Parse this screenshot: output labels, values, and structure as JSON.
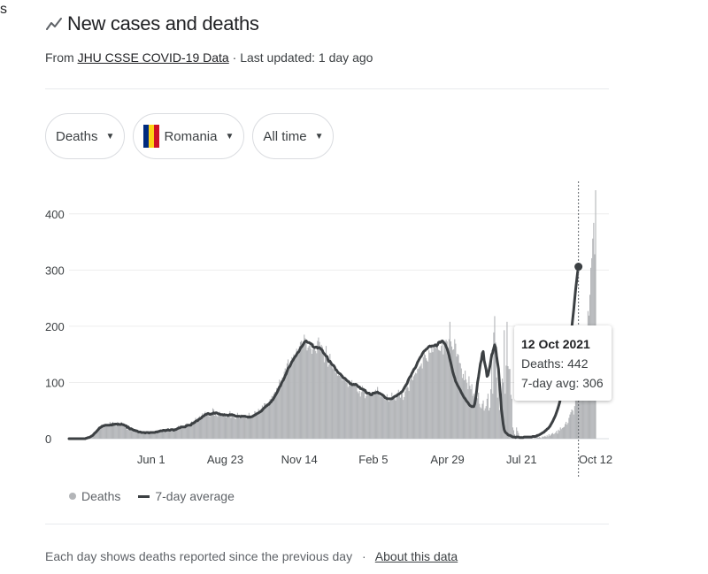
{
  "edge_text": "s",
  "header": {
    "title": "New cases and deaths",
    "source_prefix": "From",
    "source_link": "JHU CSSE COVID-19 Data",
    "source_separator": "·",
    "last_updated": "Last updated: 1 day ago",
    "icon": "trending-line-icon"
  },
  "filters": [
    {
      "label": "Deaths",
      "icon": "caret-down-icon"
    },
    {
      "label": "Romania",
      "icon": "romania-flag-icon",
      "flag_colors": [
        "#002b7f",
        "#fcd116",
        "#ce1126"
      ]
    },
    {
      "label": "All time",
      "icon": "caret-down-icon"
    }
  ],
  "tooltip": {
    "date": "12 Oct 2021",
    "deaths": "Deaths: 442",
    "avg": "7-day avg: 306"
  },
  "legend": {
    "bars_label": "Deaths",
    "line_label": "7-day average"
  },
  "footer": {
    "note": "Each day shows deaths reported since the previous day",
    "separator": "·",
    "link": "About this data"
  },
  "colors": {
    "bar": "#b3b5b8",
    "line": "#3c4043",
    "grid": "#eeeeee",
    "axis_text": "#3c4043"
  },
  "chart_data": {
    "type": "bar",
    "x_start": "2020-03-01",
    "x_end": "2021-10-12",
    "ylim": [
      0,
      450
    ],
    "yticks": [
      0,
      100,
      200,
      300,
      400
    ],
    "xtick_labels": [
      "Jun 1",
      "Aug 23",
      "Nov 14",
      "Feb 5",
      "Apr 29",
      "Jul 21",
      "Oct 12"
    ],
    "xtick_dates": [
      "2020-06-01",
      "2020-08-23",
      "2020-11-14",
      "2021-02-05",
      "2021-04-29",
      "2021-07-21",
      "2021-10-12"
    ],
    "series": [
      {
        "name": "Deaths",
        "kind": "bar",
        "values": [
          0,
          0,
          0,
          0,
          0,
          0,
          0,
          0,
          0,
          0,
          0,
          0,
          0,
          0,
          0,
          1,
          1,
          1,
          1,
          2,
          3,
          3,
          4,
          6,
          7,
          8,
          10,
          13,
          14,
          16,
          18,
          21,
          21,
          23,
          25,
          24,
          23,
          22,
          23,
          24,
          25,
          22,
          25,
          30,
          22,
          23,
          30,
          26,
          27,
          25,
          22,
          30,
          27,
          22,
          23,
          30,
          25,
          23,
          21,
          20,
          21,
          16,
          20,
          18,
          14,
          17,
          15,
          14,
          14,
          13,
          13,
          12,
          11,
          11,
          11,
          12,
          11,
          11,
          11,
          9,
          8,
          13,
          11,
          10,
          10,
          9,
          12,
          12,
          10,
          11,
          12,
          13,
          15,
          13,
          13,
          14,
          16,
          13,
          13,
          17,
          17,
          13,
          18,
          14,
          16,
          13,
          17,
          16,
          15,
          18,
          13,
          18,
          16,
          19,
          19,
          23,
          21,
          24,
          21,
          21,
          21,
          20,
          22,
          27,
          27,
          21,
          24,
          25,
          25,
          31,
          28,
          32,
          31,
          37,
          35,
          31,
          38,
          40,
          34,
          40,
          45,
          42,
          45,
          48,
          45,
          44,
          45,
          40,
          39,
          45,
          44,
          54,
          52,
          41,
          48,
          41,
          39,
          43,
          48,
          43,
          41,
          44,
          41,
          44,
          42,
          38,
          41,
          44,
          43,
          49,
          37,
          43,
          41,
          44,
          36,
          35,
          39,
          46,
          42,
          36,
          38,
          43,
          38,
          41,
          38,
          38,
          35,
          38,
          36,
          46,
          36,
          41,
          41,
          42,
          43,
          49,
          48,
          43,
          42,
          53,
          50,
          52,
          54,
          59,
          53,
          63,
          63,
          62,
          57,
          62,
          61,
          70,
          71,
          76,
          75,
          80,
          83,
          83,
          90,
          90,
          91,
          105,
          96,
          102,
          109,
          108,
          119,
          125,
          115,
          134,
          141,
          131,
          128,
          138,
          145,
          139,
          150,
          142,
          147,
          160,
          152,
          159,
          165,
          172,
          174,
          165,
          173,
          185,
          179,
          175,
          157,
          162,
          165,
          172,
          160,
          151,
          159,
          169,
          160,
          156,
          152,
          174,
          180,
          172,
          159,
          167,
          164,
          150,
          136,
          147,
          165,
          146,
          128,
          132,
          151,
          134,
          136,
          125,
          123,
          128,
          117,
          120,
          112,
          113,
          112,
          117,
          111,
          104,
          105,
          110,
          108,
          100,
          105,
          92,
          95,
          101,
          94,
          104,
          99,
          98,
          96,
          98,
          96,
          84,
          81,
          85,
          75,
          83,
          94,
          85,
          88,
          72,
          76,
          85,
          80,
          83,
          83,
          82,
          81,
          78,
          82,
          85,
          87,
          85,
          92,
          80,
          83,
          75,
          79,
          81,
          77,
          73,
          69,
          72,
          79,
          68,
          66,
          73,
          69,
          82,
          73,
          74,
          72,
          68,
          80,
          82,
          87,
          78,
          73,
          83,
          86,
          69,
          74,
          84,
          90,
          95,
          91,
          85,
          104,
          106,
          112,
          104,
          111,
          114,
          117,
          116,
          124,
          125,
          128,
          130,
          134,
          125,
          145,
          156,
          149,
          143,
          139,
          137,
          157,
          153,
          153,
          167,
          154,
          165,
          170,
          161,
          169,
          168,
          158,
          157,
          156,
          165,
          174,
          150,
          175,
          173,
          176,
          173,
          155,
          177,
          208,
          173,
          164,
          158,
          159,
          177,
          169,
          146,
          151,
          149,
          135,
          134,
          125,
          108,
          115,
          104,
          121,
          105,
          99,
          88,
          111,
          94,
          88,
          97,
          76,
          80,
          73,
          79,
          84,
          72,
          82,
          62,
          56,
          54,
          62,
          68,
          50,
          54,
          58,
          71,
          80,
          50,
          55,
          88,
          158,
          80,
          189,
          218,
          171,
          109,
          73,
          98,
          51,
          85,
          80,
          107,
          100,
          193,
          80,
          130,
          208,
          129,
          124,
          124,
          78,
          71,
          20,
          15,
          8,
          5,
          20,
          14,
          10,
          5,
          4,
          5,
          4,
          3,
          3,
          3,
          3,
          2,
          5,
          2,
          1,
          3,
          3,
          0,
          1,
          4,
          1,
          4,
          6,
          2,
          3,
          2,
          1,
          4,
          3,
          4,
          5,
          3,
          6,
          4,
          8,
          5,
          7,
          9,
          10,
          8,
          9,
          11,
          14,
          9,
          16,
          14,
          20,
          17,
          19,
          20,
          21,
          26,
          30,
          25,
          28,
          37,
          43,
          47,
          52,
          50,
          43,
          58,
          70,
          70,
          79,
          98,
          85,
          96,
          103,
          118,
          127,
          135,
          139,
          177,
          187,
          227,
          219,
          256,
          304,
          321,
          356,
          384,
          328,
          442
        ]
      },
      {
        "name": "7-day average",
        "kind": "line",
        "values": [
          0,
          0,
          0,
          0,
          0,
          0,
          0,
          0,
          0,
          0,
          0,
          0,
          0,
          0,
          0,
          0,
          0,
          0,
          1,
          1,
          2,
          2,
          3,
          4,
          5,
          6,
          8,
          10,
          11,
          13,
          15,
          17,
          19,
          20,
          21,
          22,
          23,
          23,
          24,
          24,
          24,
          24,
          24,
          24,
          25,
          24,
          26,
          25,
          26,
          26,
          26,
          25,
          26,
          25,
          25,
          26,
          25,
          25,
          24,
          23,
          23,
          20,
          21,
          19,
          17,
          18,
          17,
          16,
          15,
          15,
          14,
          14,
          13,
          12,
          12,
          12,
          11,
          11,
          11,
          11,
          10,
          11,
          11,
          11,
          10,
          11,
          11,
          11,
          11,
          11,
          11,
          12,
          12,
          12,
          13,
          13,
          14,
          14,
          14,
          15,
          15,
          14,
          15,
          15,
          16,
          15,
          15,
          16,
          16,
          16,
          15,
          16,
          16,
          17,
          18,
          19,
          19,
          20,
          21,
          21,
          21,
          21,
          21,
          23,
          23,
          24,
          24,
          24,
          24,
          27,
          27,
          28,
          29,
          31,
          32,
          32,
          34,
          35,
          36,
          37,
          39,
          40,
          41,
          43,
          43,
          44,
          45,
          44,
          43,
          44,
          44,
          45,
          46,
          45,
          46,
          46,
          45,
          44,
          44,
          43,
          43,
          43,
          42,
          43,
          42,
          42,
          42,
          41,
          42,
          43,
          42,
          43,
          42,
          42,
          41,
          40,
          40,
          40,
          40,
          40,
          39,
          40,
          40,
          40,
          40,
          40,
          39,
          39,
          38,
          39,
          38,
          39,
          39,
          40,
          41,
          42,
          43,
          44,
          45,
          46,
          47,
          48,
          49,
          51,
          53,
          55,
          56,
          58,
          59,
          61,
          61,
          64,
          65,
          68,
          69,
          72,
          75,
          78,
          81,
          84,
          88,
          92,
          94,
          98,
          102,
          104,
          108,
          112,
          115,
          120,
          125,
          127,
          129,
          133,
          137,
          139,
          142,
          145,
          147,
          150,
          153,
          154,
          157,
          161,
          163,
          165,
          168,
          171,
          173,
          174,
          172,
          171,
          171,
          170,
          169,
          168,
          164,
          163,
          162,
          163,
          163,
          161,
          162,
          162,
          160,
          159,
          157,
          153,
          151,
          149,
          147,
          146,
          140,
          137,
          138,
          135,
          132,
          131,
          130,
          127,
          123,
          122,
          119,
          117,
          116,
          115,
          113,
          111,
          108,
          108,
          107,
          105,
          103,
          102,
          101,
          98,
          98,
          96,
          96,
          97,
          96,
          97,
          96,
          94,
          92,
          92,
          89,
          89,
          88,
          88,
          86,
          86,
          82,
          81,
          81,
          81,
          79,
          78,
          78,
          81,
          81,
          81,
          82,
          82,
          83,
          81,
          81,
          80,
          79,
          78,
          77,
          75,
          73,
          72,
          71,
          71,
          71,
          71,
          71,
          71,
          72,
          74,
          75,
          76,
          76,
          78,
          79,
          80,
          81,
          83,
          84,
          87,
          90,
          93,
          96,
          98,
          103,
          107,
          110,
          112,
          116,
          119,
          123,
          125,
          127,
          131,
          136,
          139,
          142,
          145,
          147,
          151,
          154,
          156,
          157,
          159,
          160,
          162,
          164,
          165,
          164,
          165,
          165,
          165,
          166,
          167,
          165,
          167,
          171,
          172,
          171,
          173,
          174,
          172,
          170,
          168,
          164,
          160,
          155,
          149,
          141,
          134,
          127,
          119,
          113,
          108,
          102,
          99,
          95,
          92,
          89,
          86,
          82,
          79,
          76,
          73,
          71,
          68,
          66,
          64,
          61,
          59,
          58,
          57,
          57,
          57,
          62,
          71,
          84,
          100,
          110,
          121,
          133,
          140,
          152,
          155,
          139,
          131,
          123,
          111,
          113,
          121,
          129,
          139,
          150,
          153,
          161,
          167,
          162,
          147,
          135,
          124,
          100,
          80,
          53,
          39,
          26,
          16,
          12,
          10,
          9,
          7,
          6,
          6,
          5,
          4,
          3,
          3,
          3,
          2,
          3,
          3,
          3,
          2,
          2,
          2,
          2,
          2,
          3,
          3,
          3,
          3,
          3,
          3,
          3,
          3,
          3,
          4,
          4,
          4,
          4,
          5,
          6,
          6,
          7,
          8,
          9,
          10,
          11,
          12,
          14,
          15,
          17,
          18,
          20,
          22,
          25,
          28,
          31,
          35,
          38,
          42,
          47,
          52,
          57,
          63,
          70,
          77,
          84,
          92,
          100,
          109,
          119,
          130,
          142,
          155,
          168,
          182,
          198,
          214,
          230,
          247,
          265,
          280,
          295,
          306
        ]
      }
    ]
  }
}
